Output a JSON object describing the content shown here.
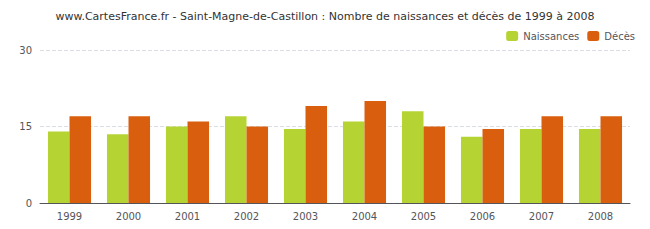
{
  "chart_data": {
    "type": "bar",
    "title": "www.CartesFrance.fr - Saint-Magne-de-Castillon : Nombre de naissances et décès de 1999 à 2008",
    "categories": [
      "1999",
      "2000",
      "2001",
      "2002",
      "2003",
      "2004",
      "2005",
      "2006",
      "2007",
      "2008"
    ],
    "series": [
      {
        "name": "Naissances",
        "color": "#b5d433",
        "values": [
          14,
          13.5,
          15,
          17,
          14.5,
          16,
          18,
          13,
          14.5,
          14.5
        ]
      },
      {
        "name": "Décès",
        "color": "#d95f0e",
        "values": [
          17,
          17,
          16,
          15,
          19,
          20,
          15,
          14.5,
          17,
          17
        ]
      }
    ],
    "ylim": [
      0,
      30
    ],
    "yticks": [
      0,
      15,
      30
    ],
    "grid": true,
    "legend": "upper right"
  }
}
